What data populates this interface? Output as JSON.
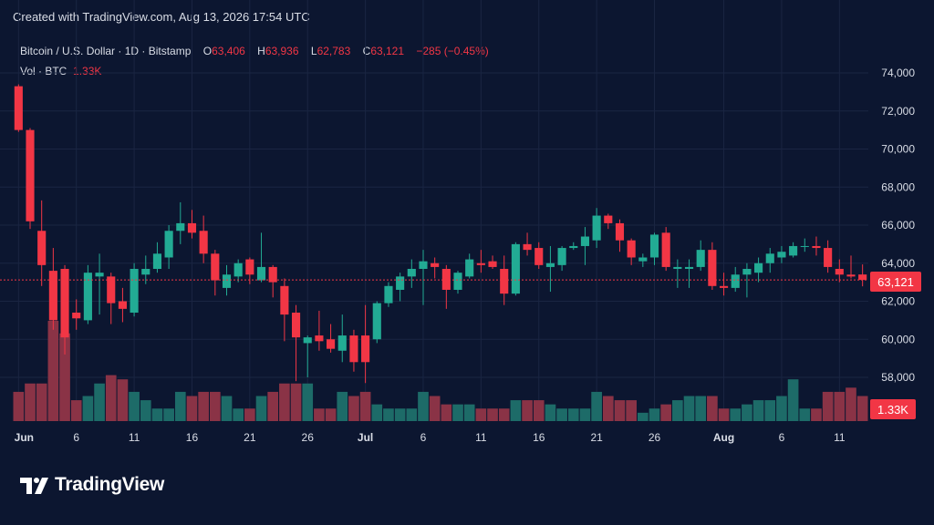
{
  "header": {
    "created_text": "Created with TradingView.com, Aug 13, 2026 17:54 UTC"
  },
  "legend": {
    "symbol": "Bitcoin / U.S. Dollar · 1D · Bitstamp",
    "o_label": "O",
    "o_value": "63,406",
    "h_label": "H",
    "h_value": "63,936",
    "l_label": "L",
    "l_value": "62,783",
    "c_label": "C",
    "c_value": "63,121",
    "change": "−285 (−0.45%)",
    "vol_label": "Vol · BTC",
    "vol_value": "1.33K"
  },
  "badges": {
    "price": "63,121",
    "volume": "1.33K"
  },
  "logo": {
    "text": "TradingView"
  },
  "colors": {
    "up": "#22ab94",
    "down": "#f23645",
    "background": "#0c1630",
    "up_volume": "#1d6b68",
    "down_volume": "#8a3346"
  },
  "chart_data": {
    "type": "candlestick",
    "y_ticks": [
      "74,000",
      "72,000",
      "70,000",
      "68,000",
      "66,000",
      "64,000",
      "62,000",
      "60,000",
      "58,000"
    ],
    "y_tick_values": [
      74000,
      72000,
      70000,
      68000,
      66000,
      64000,
      62000,
      60000,
      58000
    ],
    "ylim": [
      56500,
      75000
    ],
    "x_ticks": [
      {
        "label": "Jun",
        "bold": true,
        "index": 0
      },
      {
        "label": "6",
        "bold": false,
        "index": 5
      },
      {
        "label": "11",
        "bold": false,
        "index": 10
      },
      {
        "label": "16",
        "bold": false,
        "index": 15
      },
      {
        "label": "21",
        "bold": false,
        "index": 20
      },
      {
        "label": "26",
        "bold": false,
        "index": 25
      },
      {
        "label": "Jul",
        "bold": true,
        "index": 30
      },
      {
        "label": "6",
        "bold": false,
        "index": 35
      },
      {
        "label": "11",
        "bold": false,
        "index": 40
      },
      {
        "label": "16",
        "bold": false,
        "index": 45
      },
      {
        "label": "21",
        "bold": false,
        "index": 50
      },
      {
        "label": "26",
        "bold": false,
        "index": 55
      },
      {
        "label": "Aug",
        "bold": true,
        "index": 61
      },
      {
        "label": "6",
        "bold": false,
        "index": 66
      },
      {
        "label": "11",
        "bold": false,
        "index": 71
      }
    ],
    "last_price": 63121,
    "candles": [
      {
        "o": 73300,
        "h": 73400,
        "l": 70900,
        "c": 71000,
        "v": 0.7
      },
      {
        "o": 71000,
        "h": 71100,
        "l": 65800,
        "c": 66200,
        "v": 0.9
      },
      {
        "o": 65700,
        "h": 67300,
        "l": 62800,
        "c": 63900,
        "v": 0.9
      },
      {
        "o": 63600,
        "h": 64800,
        "l": 60500,
        "c": 61000,
        "v": 2.4
      },
      {
        "o": 63700,
        "h": 63900,
        "l": 59200,
        "c": 60100,
        "v": 2.1
      },
      {
        "o": 61400,
        "h": 62100,
        "l": 60500,
        "c": 61100,
        "v": 0.5
      },
      {
        "o": 61000,
        "h": 63900,
        "l": 60800,
        "c": 63500,
        "v": 0.6
      },
      {
        "o": 63300,
        "h": 64500,
        "l": 61300,
        "c": 63500,
        "v": 0.9
      },
      {
        "o": 63300,
        "h": 63500,
        "l": 60800,
        "c": 61900,
        "v": 1.1
      },
      {
        "o": 62000,
        "h": 62700,
        "l": 60900,
        "c": 61600,
        "v": 1.0
      },
      {
        "o": 61400,
        "h": 64000,
        "l": 61200,
        "c": 63700,
        "v": 0.7
      },
      {
        "o": 63400,
        "h": 64400,
        "l": 62900,
        "c": 63700,
        "v": 0.5
      },
      {
        "o": 63700,
        "h": 65100,
        "l": 63500,
        "c": 64500,
        "v": 0.3
      },
      {
        "o": 64300,
        "h": 66000,
        "l": 63700,
        "c": 65700,
        "v": 0.3
      },
      {
        "o": 65700,
        "h": 67200,
        "l": 65000,
        "c": 66100,
        "v": 0.7
      },
      {
        "o": 66100,
        "h": 66800,
        "l": 65300,
        "c": 65600,
        "v": 0.6
      },
      {
        "o": 65700,
        "h": 66500,
        "l": 64000,
        "c": 64500,
        "v": 0.7
      },
      {
        "o": 64500,
        "h": 64700,
        "l": 62300,
        "c": 63100,
        "v": 0.7
      },
      {
        "o": 62700,
        "h": 63900,
        "l": 62300,
        "c": 63400,
        "v": 0.6
      },
      {
        "o": 63300,
        "h": 64200,
        "l": 63000,
        "c": 64000,
        "v": 0.3
      },
      {
        "o": 64200,
        "h": 64300,
        "l": 62900,
        "c": 63400,
        "v": 0.3
      },
      {
        "o": 63100,
        "h": 65600,
        "l": 63000,
        "c": 63800,
        "v": 0.6
      },
      {
        "o": 63800,
        "h": 63900,
        "l": 62200,
        "c": 63000,
        "v": 0.7
      },
      {
        "o": 62800,
        "h": 63200,
        "l": 59900,
        "c": 61300,
        "v": 0.9
      },
      {
        "o": 61400,
        "h": 61800,
        "l": 57800,
        "c": 60100,
        "v": 0.9
      },
      {
        "o": 59800,
        "h": 60200,
        "l": 58000,
        "c": 60100,
        "v": 0.9
      },
      {
        "o": 60200,
        "h": 61500,
        "l": 59400,
        "c": 59900,
        "v": 0.3
      },
      {
        "o": 60000,
        "h": 60800,
        "l": 59300,
        "c": 59500,
        "v": 0.3
      },
      {
        "o": 59400,
        "h": 61300,
        "l": 58800,
        "c": 60200,
        "v": 0.7
      },
      {
        "o": 60200,
        "h": 60500,
        "l": 58300,
        "c": 58800,
        "v": 0.6
      },
      {
        "o": 60200,
        "h": 61800,
        "l": 57700,
        "c": 58800,
        "v": 0.7
      },
      {
        "o": 60000,
        "h": 62000,
        "l": 59800,
        "c": 61900,
        "v": 0.4
      },
      {
        "o": 61900,
        "h": 63000,
        "l": 61700,
        "c": 62800,
        "v": 0.3
      },
      {
        "o": 62600,
        "h": 63500,
        "l": 62000,
        "c": 63300,
        "v": 0.3
      },
      {
        "o": 63300,
        "h": 64200,
        "l": 62700,
        "c": 63700,
        "v": 0.3
      },
      {
        "o": 63700,
        "h": 64700,
        "l": 61800,
        "c": 64100,
        "v": 0.7
      },
      {
        "o": 64000,
        "h": 64300,
        "l": 63200,
        "c": 63800,
        "v": 0.6
      },
      {
        "o": 63700,
        "h": 63900,
        "l": 61600,
        "c": 62600,
        "v": 0.4
      },
      {
        "o": 62600,
        "h": 63600,
        "l": 62400,
        "c": 63500,
        "v": 0.4
      },
      {
        "o": 63300,
        "h": 64500,
        "l": 63200,
        "c": 64200,
        "v": 0.4
      },
      {
        "o": 64000,
        "h": 64700,
        "l": 63500,
        "c": 63900,
        "v": 0.3
      },
      {
        "o": 64100,
        "h": 64400,
        "l": 63700,
        "c": 63800,
        "v": 0.3
      },
      {
        "o": 63700,
        "h": 64400,
        "l": 61800,
        "c": 62400,
        "v": 0.3
      },
      {
        "o": 62400,
        "h": 65100,
        "l": 62300,
        "c": 65000,
        "v": 0.5
      },
      {
        "o": 65000,
        "h": 65600,
        "l": 64400,
        "c": 64700,
        "v": 0.5
      },
      {
        "o": 64800,
        "h": 65100,
        "l": 63700,
        "c": 63900,
        "v": 0.5
      },
      {
        "o": 63800,
        "h": 64900,
        "l": 62500,
        "c": 64000,
        "v": 0.4
      },
      {
        "o": 63900,
        "h": 64900,
        "l": 63600,
        "c": 64800,
        "v": 0.3
      },
      {
        "o": 64800,
        "h": 65100,
        "l": 64700,
        "c": 64900,
        "v": 0.3
      },
      {
        "o": 64900,
        "h": 65900,
        "l": 63900,
        "c": 65400,
        "v": 0.3
      },
      {
        "o": 65200,
        "h": 66900,
        "l": 64800,
        "c": 66500,
        "v": 0.7
      },
      {
        "o": 66500,
        "h": 66600,
        "l": 65800,
        "c": 66100,
        "v": 0.6
      },
      {
        "o": 66100,
        "h": 66300,
        "l": 64600,
        "c": 65200,
        "v": 0.5
      },
      {
        "o": 65200,
        "h": 65300,
        "l": 63900,
        "c": 64300,
        "v": 0.5
      },
      {
        "o": 64100,
        "h": 64500,
        "l": 63800,
        "c": 64300,
        "v": 0.2
      },
      {
        "o": 64300,
        "h": 65600,
        "l": 63900,
        "c": 65500,
        "v": 0.3
      },
      {
        "o": 65600,
        "h": 65900,
        "l": 63600,
        "c": 63800,
        "v": 0.4
      },
      {
        "o": 63700,
        "h": 64200,
        "l": 62700,
        "c": 63800,
        "v": 0.5
      },
      {
        "o": 63700,
        "h": 64200,
        "l": 62700,
        "c": 63800,
        "v": 0.6
      },
      {
        "o": 63800,
        "h": 65200,
        "l": 63600,
        "c": 64700,
        "v": 0.6
      },
      {
        "o": 64700,
        "h": 65100,
        "l": 62600,
        "c": 62800,
        "v": 0.6
      },
      {
        "o": 62800,
        "h": 63500,
        "l": 62300,
        "c": 62700,
        "v": 0.3
      },
      {
        "o": 62700,
        "h": 63800,
        "l": 62500,
        "c": 63400,
        "v": 0.3
      },
      {
        "o": 63400,
        "h": 64000,
        "l": 62200,
        "c": 63700,
        "v": 0.4
      },
      {
        "o": 63500,
        "h": 64300,
        "l": 63000,
        "c": 64000,
        "v": 0.5
      },
      {
        "o": 64000,
        "h": 64800,
        "l": 63500,
        "c": 64500,
        "v": 0.5
      },
      {
        "o": 64300,
        "h": 64900,
        "l": 64000,
        "c": 64600,
        "v": 0.6
      },
      {
        "o": 64400,
        "h": 65100,
        "l": 64300,
        "c": 64900,
        "v": 1.0
      },
      {
        "o": 64900,
        "h": 65300,
        "l": 64600,
        "c": 64900,
        "v": 0.3
      },
      {
        "o": 64900,
        "h": 65400,
        "l": 64400,
        "c": 64800,
        "v": 0.3
      },
      {
        "o": 64800,
        "h": 65200,
        "l": 63500,
        "c": 63800,
        "v": 0.7
      },
      {
        "o": 63700,
        "h": 64200,
        "l": 63000,
        "c": 63400,
        "v": 0.7
      },
      {
        "o": 63400,
        "h": 64400,
        "l": 63200,
        "c": 63300,
        "v": 0.8
      },
      {
        "o": 63406,
        "h": 63936,
        "l": 62783,
        "c": 63121,
        "v": 0.6
      }
    ]
  }
}
